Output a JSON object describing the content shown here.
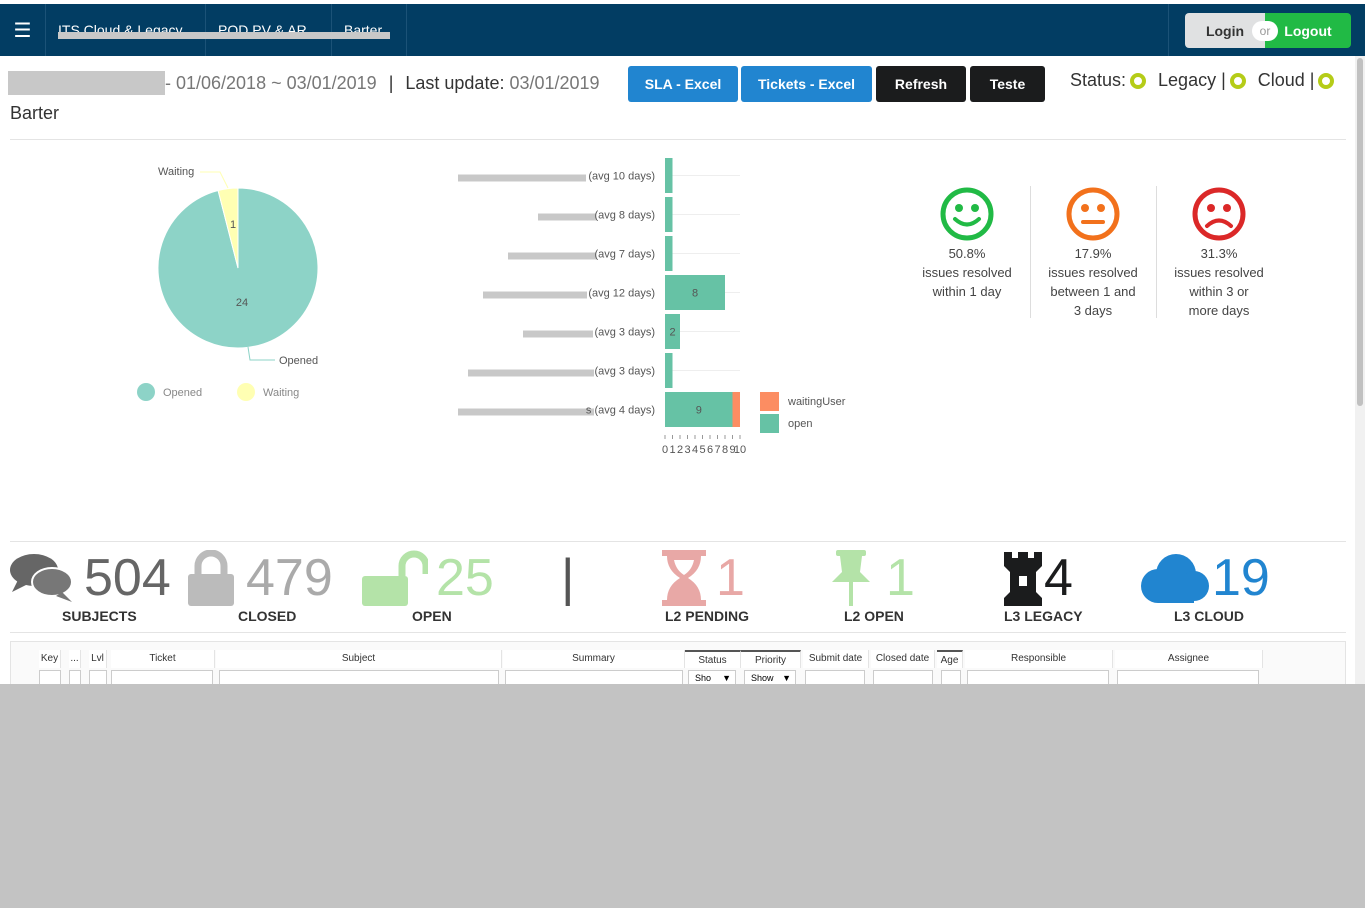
{
  "nav": {
    "menu_icon": "hamburger-icon",
    "tabs": [
      "ITS Cloud & Legacy",
      "POD PV & AR",
      "Barter"
    ]
  },
  "auth": {
    "login": "Login",
    "or": "or",
    "logout": "Logout"
  },
  "header": {
    "date_range": "- 01/06/2018 ~ 03/01/2019",
    "separator": "|",
    "last_update_label": "Last update:",
    "last_update_value": "03/01/2019",
    "buttons": {
      "sla_excel": "SLA - Excel",
      "tickets_excel": "Tickets - Excel",
      "refresh": "Refresh",
      "teste": "Teste"
    },
    "status_label": "Status:",
    "status_legacy": "Legacy |",
    "status_cloud": "Cloud |",
    "org": "Barter"
  },
  "pie_chart": {
    "type": "pie",
    "series": [
      {
        "name": "Opened",
        "value": 24,
        "color": "#8dd3c7"
      },
      {
        "name": "Waiting",
        "value": 1,
        "color": "#ffffb3"
      }
    ],
    "legend": [
      "Opened",
      "Waiting"
    ]
  },
  "chart_data": {
    "type": "bar",
    "orientation": "horizontal",
    "stacked": true,
    "categories": [
      "(avg 10 days)",
      "(avg 8 days)",
      "(avg 7 days)",
      "(avg 12 days)",
      "(avg 3 days)",
      "(avg 3 days)",
      "s (avg 4 days)"
    ],
    "series": [
      {
        "name": "open",
        "values": [
          1,
          1,
          1,
          8,
          2,
          1,
          9
        ],
        "color": "#66c2a5"
      },
      {
        "name": "waitingUser",
        "values": [
          0,
          0,
          0,
          0,
          0,
          0,
          1
        ],
        "color": "#fc8d62"
      }
    ],
    "data_labels": [
      "",
      "",
      "",
      "8",
      "2",
      "",
      "9"
    ],
    "xlim": [
      0,
      10
    ],
    "xticks": [
      "0",
      "1",
      "2",
      "3",
      "4",
      "5",
      "6",
      "7",
      "8",
      "9",
      "10"
    ],
    "legend": [
      "waitingUser",
      "open"
    ],
    "legend_position": "right"
  },
  "resolution": [
    {
      "percent": "50.8%",
      "text": "issues resolved within 1 day",
      "mood": "happy",
      "color": "#21ba45",
      "icon": "smile-icon"
    },
    {
      "percent": "17.9%",
      "text": "issues resolved between 1 and 3 days",
      "mood": "neutral",
      "color": "#f2711c",
      "icon": "meh-icon"
    },
    {
      "percent": "31.3%",
      "text": "issues resolved within 3 or more days",
      "mood": "sad",
      "color": "#db2828",
      "icon": "frown-icon"
    }
  ],
  "stats": {
    "subjects": {
      "value": "504",
      "label": "SUBJECTS"
    },
    "closed": {
      "value": "479",
      "label": "CLOSED"
    },
    "open": {
      "value": "25",
      "label": "OPEN"
    },
    "divider": "|",
    "l2_pending": {
      "value": "1",
      "label": "L2 PENDING"
    },
    "l2_open": {
      "value": "1",
      "label": "L2 OPEN"
    },
    "l3_legacy": {
      "value": "4",
      "label": "L3 LEGACY"
    },
    "l3_cloud": {
      "value": "19",
      "label": "L3 CLOUD"
    }
  },
  "table": {
    "columns": [
      "Key",
      "...",
      "Lvl",
      "Ticket",
      "Subject",
      "Summary",
      "Status",
      "Priority",
      "Submit date",
      "Closed date",
      "Age",
      "Responsible",
      "Assignee"
    ],
    "status_filter": "Sho",
    "priority_filter": "Show"
  }
}
